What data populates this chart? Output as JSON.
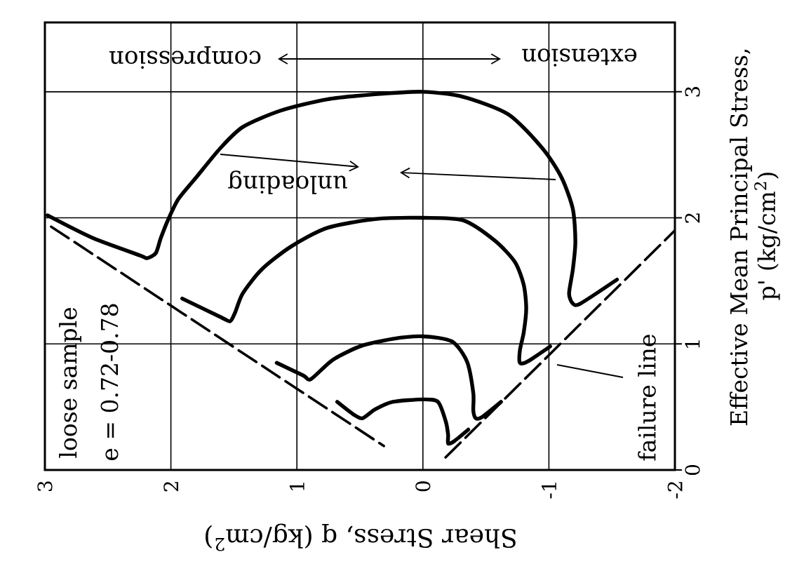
{
  "chart_data": {
    "type": "line",
    "xlabel": "Shear Stress, q (kg/cm$^{2}$)",
    "ylabel": "Effective Mean Principal Stress, p' (kg/cm$^{2}$)",
    "xlim": [
      3,
      -2
    ],
    "ylim": [
      0,
      3.55
    ],
    "xticks": [
      3,
      2,
      1,
      0,
      -1,
      -2
    ],
    "yticks": [
      0,
      1,
      2,
      3
    ],
    "grid": true,
    "annotations": [
      "compression",
      "extension",
      "unloading",
      "loose sample",
      "e = 0.72-0.78",
      "failure line"
    ],
    "series": [
      {
        "color": "#000000",
        "line_style": "solid",
        "x": [
          2.98,
          2.62,
          2.24,
          2.19,
          2.12,
          2.08,
          2.02,
          1.94,
          1.8,
          1.61,
          1.43,
          1.13,
          0.76,
          0.38,
          0,
          -0.32,
          -0.68,
          -0.95,
          -1.1,
          -1.19,
          -1.21,
          -1.19,
          -1.16,
          -1.19,
          -1.25,
          -1.54
        ],
        "values": [
          2.02,
          1.84,
          1.7,
          1.68,
          1.72,
          1.84,
          1.99,
          2.15,
          2.32,
          2.55,
          2.72,
          2.85,
          2.94,
          2.98,
          3.0,
          2.96,
          2.82,
          2.55,
          2.32,
          2.07,
          1.81,
          1.59,
          1.4,
          1.32,
          1.32,
          1.51
        ]
      },
      {
        "color": "#000000",
        "line_style": "solid",
        "x": [
          1.91,
          1.6,
          1.53,
          1.49,
          1.43,
          1.28,
          1.05,
          0.76,
          0.38,
          0,
          -0.32,
          -0.57,
          -0.73,
          -0.8,
          -0.82,
          -0.8,
          -0.77,
          -0.77,
          -0.83,
          -1.01
        ],
        "values": [
          1.36,
          1.21,
          1.18,
          1.25,
          1.4,
          1.59,
          1.77,
          1.92,
          1.99,
          2.0,
          1.98,
          1.82,
          1.65,
          1.47,
          1.28,
          1.09,
          0.95,
          0.85,
          0.86,
          0.98
        ]
      },
      {
        "color": "#000000",
        "line_style": "solid",
        "x": [
          1.16,
          0.95,
          0.89,
          0.72,
          0.5,
          0.24,
          0,
          -0.23,
          -0.35,
          -0.4,
          -0.4,
          -0.42,
          -0.47,
          -0.62
        ],
        "values": [
          0.85,
          0.75,
          0.72,
          0.87,
          0.98,
          1.04,
          1.06,
          1.02,
          0.86,
          0.61,
          0.47,
          0.41,
          0.42,
          0.54
        ]
      },
      {
        "color": "#000000",
        "line_style": "solid",
        "x": [
          0.68,
          0.55,
          0.48,
          0.38,
          0.24,
          0,
          -0.12,
          -0.18,
          -0.2,
          -0.2,
          -0.25,
          -0.36
        ],
        "values": [
          0.54,
          0.44,
          0.41,
          0.48,
          0.54,
          0.56,
          0.54,
          0.39,
          0.28,
          0.21,
          0.23,
          0.32
        ]
      },
      {
        "color": "#000000",
        "line_style": "dashed",
        "x": [
          2.95,
          0.31
        ],
        "values": [
          1.93,
          0.19
        ]
      },
      {
        "color": "#000000",
        "line_style": "dashed",
        "x": [
          -0.18,
          -2.0
        ],
        "values": [
          0.1,
          1.9
        ]
      }
    ]
  }
}
